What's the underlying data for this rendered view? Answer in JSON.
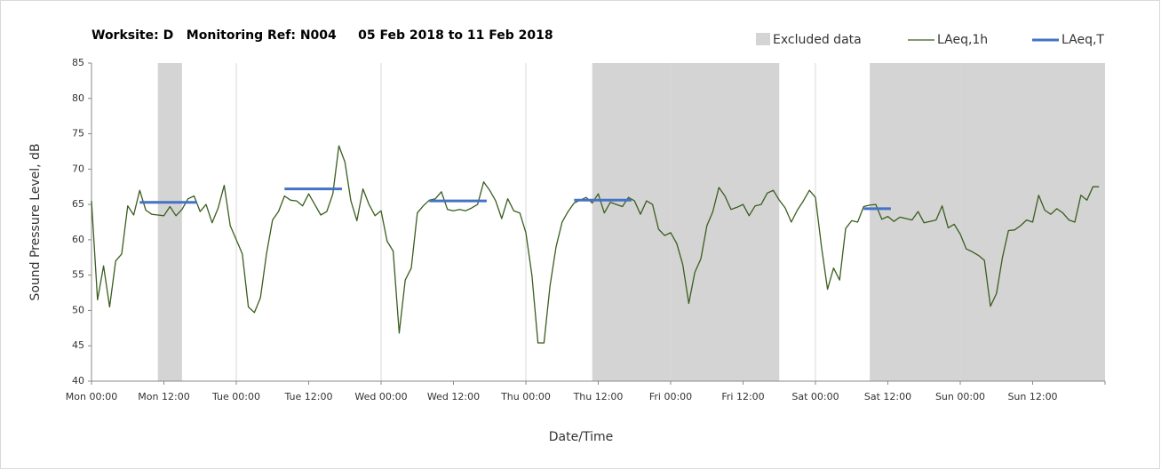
{
  "chart_data": {
    "type": "line",
    "title": "Worksite: D   Monitoring Ref: N004     05 Feb 2018 to 11 Feb 2018",
    "xlabel": "Date/Time",
    "ylabel": "Sound Pressure Level, dB",
    "xlim": [
      0,
      168
    ],
    "ylim": [
      40,
      85
    ],
    "yticks": [
      40,
      45,
      50,
      55,
      60,
      65,
      70,
      75,
      80,
      85
    ],
    "xticks": [
      {
        "value": 0,
        "label": "Mon 00:00"
      },
      {
        "value": 12,
        "label": "Mon 12:00"
      },
      {
        "value": 24,
        "label": "Tue 00:00"
      },
      {
        "value": 36,
        "label": "Tue 12:00"
      },
      {
        "value": 48,
        "label": "Wed 00:00"
      },
      {
        "value": 60,
        "label": "Wed 12:00"
      },
      {
        "value": 72,
        "label": "Thu 00:00"
      },
      {
        "value": 84,
        "label": "Thu 12:00"
      },
      {
        "value": 96,
        "label": "Fri 00:00"
      },
      {
        "value": 108,
        "label": "Fri 12:00"
      },
      {
        "value": 120,
        "label": "Sat 00:00"
      },
      {
        "value": 132,
        "label": "Sat 12:00"
      },
      {
        "value": 144,
        "label": "Sun 00:00"
      },
      {
        "value": 156,
        "label": "Sun 12:00"
      }
    ],
    "grid": "x",
    "legend": "top-right",
    "excluded": {
      "name": "Excluded data",
      "color": "#d4d4d4",
      "ranges": [
        [
          11,
          15
        ],
        [
          83,
          114
        ],
        [
          129,
          168
        ]
      ]
    },
    "series": [
      {
        "name": "LAeq,1h",
        "color": "#3a5e1e",
        "x": [
          0,
          1,
          2,
          3,
          4,
          5,
          6,
          7,
          8,
          9,
          10,
          11,
          12,
          13,
          14,
          15,
          16,
          17,
          18,
          19,
          20,
          21,
          22,
          23,
          24,
          25,
          26,
          27,
          28,
          29,
          30,
          31,
          32,
          33,
          34,
          35,
          36,
          37,
          38,
          39,
          40,
          41,
          42,
          43,
          44,
          45,
          46,
          47,
          48,
          49,
          50,
          51,
          52,
          53,
          54,
          55,
          56,
          57,
          58,
          59,
          60,
          61,
          62,
          63,
          64,
          65,
          66,
          67,
          68,
          69,
          70,
          71,
          72,
          73,
          74,
          75,
          76,
          77,
          78,
          79,
          80,
          81,
          82,
          83,
          84,
          85,
          86,
          87,
          88,
          89,
          90,
          91,
          92,
          93,
          94,
          95,
          96,
          97,
          98,
          99,
          100,
          101,
          102,
          103,
          104,
          105,
          106,
          107,
          108,
          109,
          110,
          111,
          112,
          113,
          114,
          115,
          116,
          117,
          118,
          119,
          120,
          121,
          122,
          123,
          124,
          125,
          126,
          127,
          128,
          129,
          130,
          131,
          132,
          133,
          134,
          135,
          136,
          137,
          138,
          139,
          140,
          141,
          142,
          143,
          144,
          145,
          146,
          147,
          148,
          149,
          150,
          151,
          152,
          153,
          154,
          155,
          156,
          157,
          158,
          159,
          160,
          161,
          162,
          163,
          164,
          165,
          166,
          167
        ],
        "values": [
          65.5,
          51.5,
          56.3,
          50.5,
          57,
          58,
          64.8,
          63.5,
          67,
          64.2,
          63.6,
          63.5,
          63.4,
          64.7,
          63.4,
          64.3,
          65.8,
          66.2,
          64,
          65,
          62.4,
          64.5,
          67.7,
          62,
          60,
          58,
          50.5,
          49.7,
          51.8,
          58,
          62.8,
          64,
          66.2,
          65.6,
          65.5,
          64.8,
          66.5,
          65,
          63.5,
          64,
          66.5,
          73.3,
          71,
          65.5,
          62.7,
          67.2,
          65,
          63.4,
          64.1,
          59.8,
          58.4,
          46.8,
          54.3,
          56,
          63.8,
          64.8,
          65.6,
          65.8,
          66.8,
          64.3,
          64.1,
          64.3,
          64.1,
          64.5,
          65,
          68.2,
          67,
          65.5,
          63,
          65.8,
          64.1,
          63.8,
          61,
          55,
          45.4,
          45.4,
          53.5,
          59,
          62.5,
          64,
          65.2,
          65.6,
          66,
          65.2,
          66.5,
          63.8,
          65.3,
          65,
          64.7,
          66,
          65.5,
          63.6,
          65.5,
          65,
          61.5,
          60.6,
          61,
          59.5,
          56.5,
          51,
          55.4,
          57.3,
          62,
          64,
          67.4,
          66.2,
          64.3,
          64.6,
          65,
          63.4,
          64.8,
          65,
          66.6,
          67,
          65.6,
          64.5,
          62.5,
          64.2,
          65.5,
          67,
          66,
          59,
          53,
          56,
          54.3,
          61.6,
          62.7,
          62.5,
          64.7,
          64.9,
          65,
          62.9,
          63.3,
          62.6,
          63.2,
          63,
          62.8,
          64,
          62.4,
          62.6,
          62.8,
          64.8,
          61.7,
          62.2,
          60.8,
          58.7,
          58.3,
          57.8,
          57.1,
          50.6,
          52.4,
          57.5,
          61.3,
          61.4,
          62,
          62.8,
          62.5,
          66.3,
          64.2,
          63.6,
          64.4,
          63.8,
          62.8,
          62.5,
          66.3,
          65.6,
          67.5,
          67.5
        ]
      },
      {
        "name": "LAeq,T",
        "color": "#4472c4",
        "x": [
          8,
          17.5,
          null,
          32,
          41.5,
          null,
          56,
          65.5,
          null,
          80,
          89.5,
          null,
          128,
          132.5
        ],
        "values": [
          65.3,
          65.3,
          null,
          67.2,
          67.2,
          null,
          65.5,
          65.5,
          null,
          65.6,
          65.6,
          null,
          64.4,
          64.4
        ]
      }
    ]
  }
}
